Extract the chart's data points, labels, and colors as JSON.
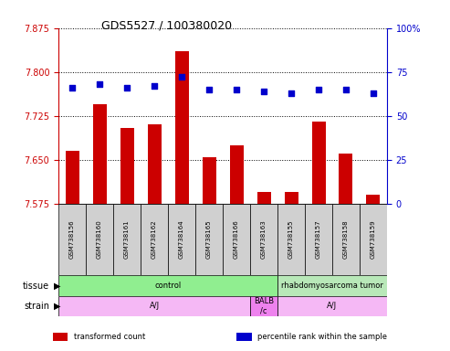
{
  "title": "GDS5527 / 100380020",
  "samples": [
    "GSM738156",
    "GSM738160",
    "GSM738161",
    "GSM738162",
    "GSM738164",
    "GSM738165",
    "GSM738166",
    "GSM738163",
    "GSM738155",
    "GSM738157",
    "GSM738158",
    "GSM738159"
  ],
  "transformed_count": [
    7.665,
    7.745,
    7.705,
    7.71,
    7.835,
    7.655,
    7.675,
    7.595,
    7.595,
    7.715,
    7.66,
    7.59
  ],
  "percentile_rank": [
    66,
    68,
    66,
    67,
    72,
    65,
    65,
    64,
    63,
    65,
    65,
    63
  ],
  "ylim_left": [
    7.575,
    7.875
  ],
  "ylim_right": [
    0,
    100
  ],
  "yticks_left": [
    7.575,
    7.65,
    7.725,
    7.8,
    7.875
  ],
  "yticks_right": [
    0,
    25,
    50,
    75,
    100
  ],
  "bar_color": "#cc0000",
  "dot_color": "#0000cc",
  "tissue_groups": [
    {
      "label": "control",
      "start": 0,
      "end": 8,
      "color": "#90ee90"
    },
    {
      "label": "rhabdomyosarcoma tumor",
      "start": 8,
      "end": 12,
      "color": "#b8e8b8"
    }
  ],
  "strain_groups": [
    {
      "label": "A/J",
      "start": 0,
      "end": 7,
      "color": "#f5b8f5"
    },
    {
      "label": "BALB\n/c",
      "start": 7,
      "end": 8,
      "color": "#ee82ee"
    },
    {
      "label": "A/J",
      "start": 8,
      "end": 12,
      "color": "#f5b8f5"
    }
  ],
  "legend_items": [
    {
      "color": "#cc0000",
      "label": "transformed count"
    },
    {
      "color": "#0000cc",
      "label": "percentile rank within the sample"
    }
  ],
  "left_axis_color": "#cc0000",
  "right_axis_color": "#0000cc",
  "bg_color": "#ffffff",
  "tissue_label": "tissue",
  "strain_label": "strain"
}
